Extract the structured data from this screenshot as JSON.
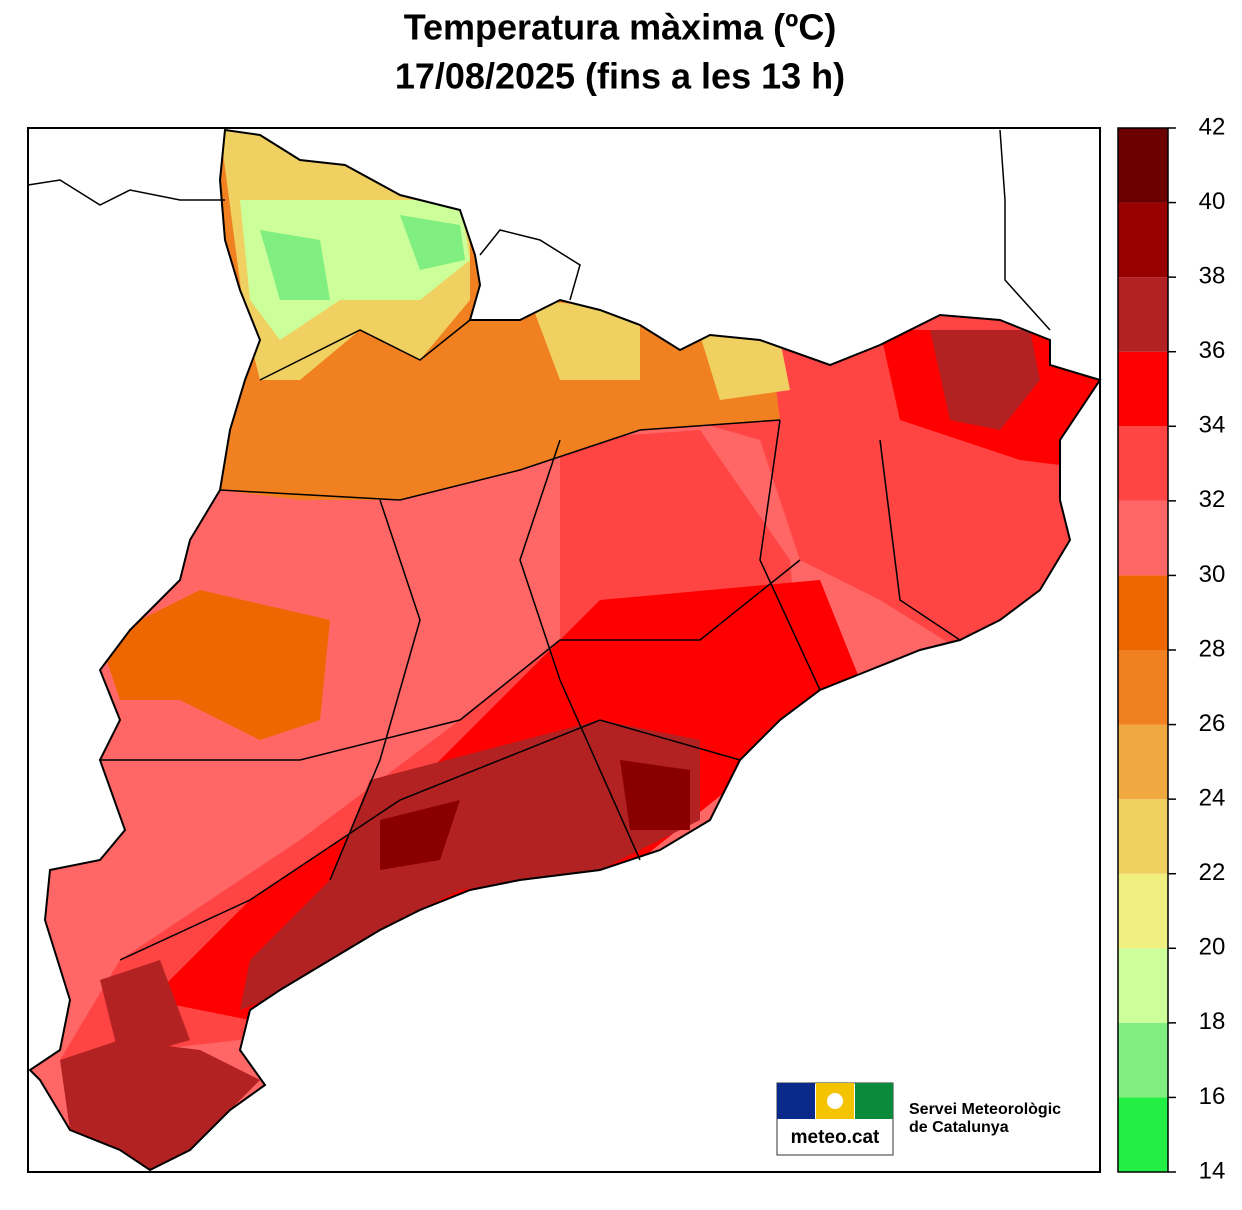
{
  "title_lines": [
    "Temperatura màxima (ºC)",
    "17/08/2025 (fins a les 13 h)"
  ],
  "legend": {
    "ticks": [
      14,
      16,
      18,
      20,
      22,
      24,
      26,
      28,
      30,
      32,
      34,
      36,
      38,
      40,
      42
    ],
    "colors": [
      "#22ee44",
      "#80ee80",
      "#ccff99",
      "#f0f080",
      "#f0d060",
      "#f0a840",
      "#f08020",
      "#ee6600",
      "#ff6666",
      "#ff4444",
      "#ff0000",
      "#b22222",
      "#990000",
      "#6b0000"
    ]
  },
  "logo": {
    "text": "meteo.cat",
    "org": [
      "Servei Meteorològic",
      "de Catalunya"
    ]
  }
}
